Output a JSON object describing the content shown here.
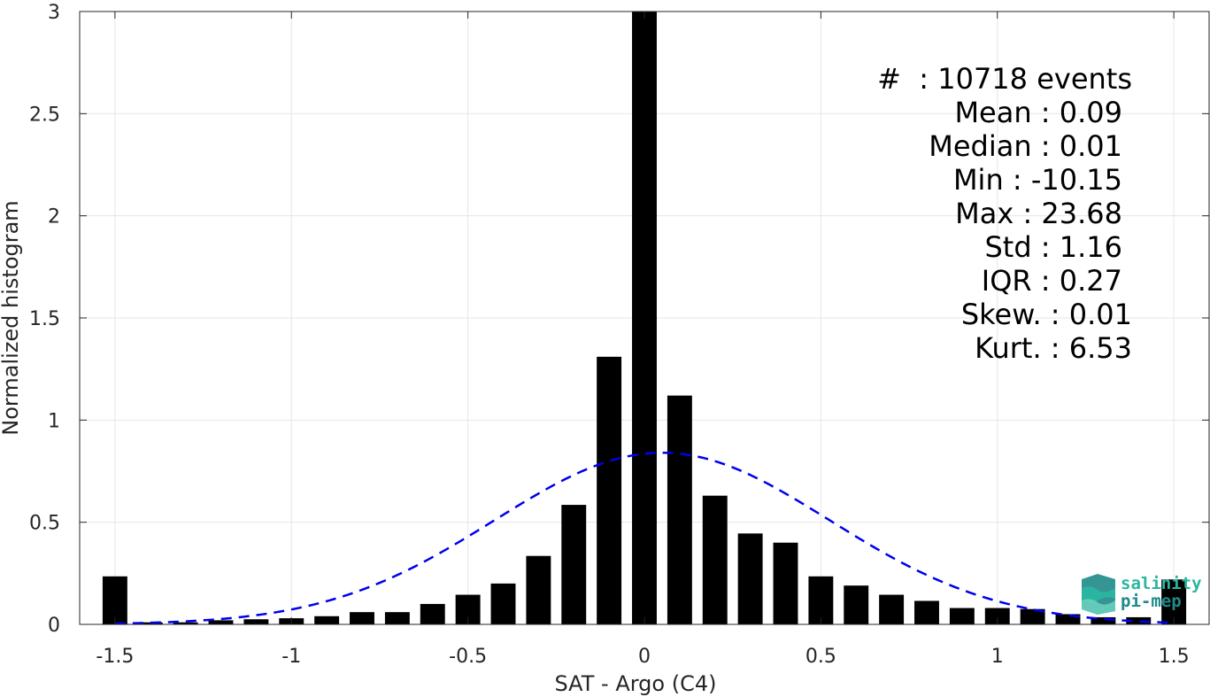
{
  "chart_data": {
    "type": "bar",
    "xlabel": "SAT - Argo (C4)",
    "ylabel": "Normalized histogram",
    "xlim": [
      -1.6,
      1.6
    ],
    "ylim": [
      0,
      3
    ],
    "xticks": [
      "-1.5",
      "-1",
      "-0.5",
      "0",
      "0.5",
      "1",
      "1.5"
    ],
    "xtick_values": [
      -1.5,
      -1,
      -0.5,
      0,
      0.5,
      1,
      1.5
    ],
    "yticks": [
      "0",
      "0.5",
      "1",
      "1.5",
      "2",
      "2.5",
      "3"
    ],
    "ytick_values": [
      0,
      0.5,
      1,
      1.5,
      2,
      2.5,
      3
    ],
    "grid": true,
    "bin_width": 0.1,
    "x": [
      -1.5,
      -1.4,
      -1.3,
      -1.2,
      -1.1,
      -1.0,
      -0.9,
      -0.8,
      -0.7,
      -0.6,
      -0.5,
      -0.4,
      -0.3,
      -0.2,
      -0.1,
      0.0,
      0.1,
      0.2,
      0.3,
      0.4,
      0.5,
      0.6,
      0.7,
      0.8,
      0.9,
      1.0,
      1.1,
      1.2,
      1.3,
      1.4,
      1.5
    ],
    "values": [
      0.235,
      0.01,
      0.01,
      0.02,
      0.025,
      0.03,
      0.04,
      0.06,
      0.06,
      0.1,
      0.145,
      0.2,
      0.335,
      0.585,
      1.31,
      3.0,
      1.12,
      0.63,
      0.445,
      0.4,
      0.235,
      0.19,
      0.145,
      0.115,
      0.08,
      0.08,
      0.075,
      0.05,
      0.035,
      0.035,
      0.22
    ],
    "fit": {
      "type": "gaussian",
      "mean": 0.05,
      "std": 0.475,
      "peak": 0.84,
      "style": "dashed",
      "color": "#0000ee"
    },
    "bar_color": "#000000"
  },
  "stats": {
    "count": "#  : 10718 events",
    "mean": "Mean : 0.09",
    "median": "Median : 0.01",
    "min": "Min : -10.15",
    "max": "Max : 23.68",
    "std": "Std : 1.16",
    "iqr": "IQR : 0.27",
    "skew": "Skew. : 0.01",
    "kurt": "Kurt. : 6.53"
  },
  "logo": {
    "line1": "salinity",
    "line2": "pi-mep"
  }
}
